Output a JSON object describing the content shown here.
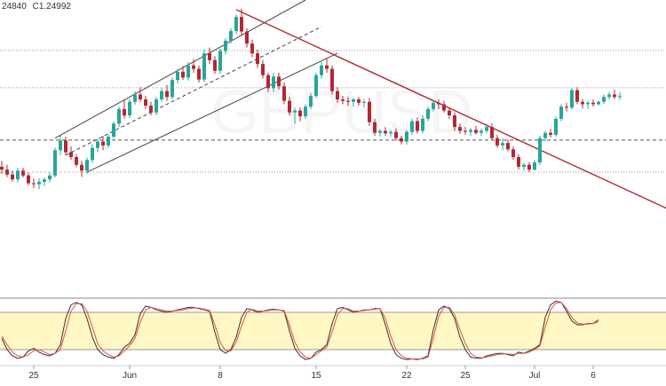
{
  "header": {
    "values": [
      "24840",
      "C1.24992"
    ]
  },
  "colors": {
    "up": "#26a69a",
    "down": "#b22833",
    "trendline": "#b22833",
    "channel": "#444444",
    "stoch_k": "#333333",
    "stoch_d": "#e05050",
    "stoch_band": "#fff8c4",
    "grid": "#9a9a9a"
  },
  "chart_data": [
    {
      "type": "candlestick",
      "instrument": "GBPUSD",
      "x_ticks": [
        "25",
        "Jun",
        "8",
        "15",
        "22",
        "25",
        "Jul",
        "6"
      ],
      "ylim": [
        1.2335,
        1.295
      ],
      "horizontal_levels": [
        1.2846,
        1.2769,
        1.2661,
        1.2595
      ],
      "rising_channel": {
        "lower": {
          "from": {
            "i": 16,
            "price": 1.2595
          },
          "to": {
            "i": 63,
            "price": 1.284
          }
        },
        "upper": {
          "from": {
            "i": 10,
            "price": 1.2665
          },
          "to": {
            "i": 57,
            "price": 1.295
          }
        },
        "mid_dashed": {
          "from": {
            "i": 12,
            "price": 1.263
          },
          "to": {
            "i": 60,
            "price": 1.2895
          }
        }
      },
      "falling_trendline": {
        "from": {
          "i": 44,
          "price": 1.293
        },
        "to": {
          "i": 112,
          "price": 1.2585
        }
      },
      "candles": [
        [
          1.2606,
          1.2618,
          1.2591,
          1.26
        ],
        [
          1.26,
          1.261,
          1.2585,
          1.259
        ],
        [
          1.259,
          1.2598,
          1.2575,
          1.258
        ],
        [
          1.258,
          1.2604,
          1.2574,
          1.2598
        ],
        [
          1.2598,
          1.2604,
          1.2584,
          1.2588
        ],
        [
          1.2588,
          1.2594,
          1.2568,
          1.2572
        ],
        [
          1.2572,
          1.2582,
          1.2562,
          1.257
        ],
        [
          1.257,
          1.2582,
          1.256,
          1.2575
        ],
        [
          1.2575,
          1.2584,
          1.2566,
          1.258
        ],
        [
          1.258,
          1.2594,
          1.2574,
          1.2588
        ],
        [
          1.2588,
          1.2645,
          1.2584,
          1.264
        ],
        [
          1.264,
          1.267,
          1.263,
          1.266
        ],
        [
          1.266,
          1.2668,
          1.263,
          1.2636
        ],
        [
          1.2636,
          1.2648,
          1.262,
          1.2626
        ],
        [
          1.2626,
          1.2632,
          1.2605,
          1.261
        ],
        [
          1.261,
          1.2618,
          1.2585,
          1.2598
        ],
        [
          1.2598,
          1.2625,
          1.2592,
          1.262
        ],
        [
          1.262,
          1.2652,
          1.2614,
          1.2645
        ],
        [
          1.2645,
          1.2664,
          1.2636,
          1.2658
        ],
        [
          1.2658,
          1.267,
          1.264,
          1.265
        ],
        [
          1.265,
          1.2672,
          1.2645,
          1.2668
        ],
        [
          1.2668,
          1.27,
          1.2664,
          1.2695
        ],
        [
          1.2695,
          1.273,
          1.2688,
          1.2725
        ],
        [
          1.2725,
          1.2745,
          1.2705,
          1.2712
        ],
        [
          1.2712,
          1.2745,
          1.2706,
          1.274
        ],
        [
          1.274,
          1.2762,
          1.2734,
          1.2755
        ],
        [
          1.2755,
          1.277,
          1.274,
          1.2745
        ],
        [
          1.2745,
          1.2752,
          1.2725,
          1.2732
        ],
        [
          1.2732,
          1.274,
          1.2712,
          1.2718
        ],
        [
          1.2718,
          1.275,
          1.2712,
          1.2745
        ],
        [
          1.2745,
          1.2768,
          1.274,
          1.2762
        ],
        [
          1.2762,
          1.2775,
          1.2742,
          1.275
        ],
        [
          1.275,
          1.279,
          1.2745,
          1.2785
        ],
        [
          1.2785,
          1.2808,
          1.2778,
          1.2802
        ],
        [
          1.2802,
          1.2814,
          1.2785,
          1.279
        ],
        [
          1.279,
          1.2822,
          1.2784,
          1.2815
        ],
        [
          1.2815,
          1.2828,
          1.28,
          1.2808
        ],
        [
          1.2808,
          1.2815,
          1.278,
          1.2786
        ],
        [
          1.2786,
          1.2848,
          1.278,
          1.284
        ],
        [
          1.284,
          1.2852,
          1.2818,
          1.2826
        ],
        [
          1.2826,
          1.2834,
          1.2798,
          1.2804
        ],
        [
          1.2804,
          1.285,
          1.2798,
          1.2845
        ],
        [
          1.2845,
          1.2872,
          1.2838,
          1.2866
        ],
        [
          1.2866,
          1.2892,
          1.286,
          1.2886
        ],
        [
          1.2886,
          1.292,
          1.288,
          1.2915
        ],
        [
          1.2915,
          1.2932,
          1.2876,
          1.2885
        ],
        [
          1.2885,
          1.2892,
          1.2852,
          1.286
        ],
        [
          1.286,
          1.2868,
          1.2832,
          1.284
        ],
        [
          1.284,
          1.2848,
          1.281,
          1.2818
        ],
        [
          1.2818,
          1.2826,
          1.2788,
          1.2795
        ],
        [
          1.2795,
          1.28,
          1.276,
          1.2768
        ],
        [
          1.2768,
          1.28,
          1.276,
          1.2792
        ],
        [
          1.2792,
          1.28,
          1.2765,
          1.2772
        ],
        [
          1.2772,
          1.278,
          1.2735,
          1.2742
        ],
        [
          1.2742,
          1.275,
          1.2712,
          1.2718
        ],
        [
          1.2718,
          1.2728,
          1.2695,
          1.2722
        ],
        [
          1.2722,
          1.2728,
          1.27,
          1.271
        ],
        [
          1.271,
          1.2735,
          1.2705,
          1.273
        ],
        [
          1.273,
          1.2758,
          1.2725,
          1.2752
        ],
        [
          1.2752,
          1.28,
          1.2748,
          1.2795
        ],
        [
          1.2795,
          1.2822,
          1.2788,
          1.2815
        ],
        [
          1.2815,
          1.283,
          1.28,
          1.2808
        ],
        [
          1.2808,
          1.2815,
          1.2755,
          1.2762
        ],
        [
          1.2762,
          1.277,
          1.2738,
          1.2745
        ],
        [
          1.2745,
          1.2752,
          1.2735,
          1.2742
        ],
        [
          1.2742,
          1.275,
          1.2732,
          1.274
        ],
        [
          1.274,
          1.2748,
          1.273,
          1.2745
        ],
        [
          1.2745,
          1.275,
          1.2732,
          1.2738
        ],
        [
          1.2738,
          1.2746,
          1.2728,
          1.274
        ],
        [
          1.274,
          1.2748,
          1.269,
          1.2698
        ],
        [
          1.2698,
          1.2705,
          1.267,
          1.2676
        ],
        [
          1.2676,
          1.2684,
          1.2668,
          1.268
        ],
        [
          1.268,
          1.2688,
          1.267,
          1.2675
        ],
        [
          1.2675,
          1.2682,
          1.2668,
          1.2678
        ],
        [
          1.2678,
          1.2685,
          1.266,
          1.2665
        ],
        [
          1.2665,
          1.267,
          1.2652,
          1.2658
        ],
        [
          1.2658,
          1.2682,
          1.2652,
          1.2678
        ],
        [
          1.2678,
          1.2705,
          1.2672,
          1.27
        ],
        [
          1.27,
          1.2708,
          1.2675,
          1.268
        ],
        [
          1.268,
          1.2712,
          1.2675,
          1.2705
        ],
        [
          1.2705,
          1.273,
          1.27,
          1.2725
        ],
        [
          1.2725,
          1.2742,
          1.272,
          1.2738
        ],
        [
          1.2738,
          1.2745,
          1.2725,
          1.2735
        ],
        [
          1.2735,
          1.2742,
          1.2718,
          1.2722
        ],
        [
          1.2722,
          1.2728,
          1.2705,
          1.2712
        ],
        [
          1.2712,
          1.2718,
          1.268,
          1.2688
        ],
        [
          1.2688,
          1.2695,
          1.2674,
          1.268
        ],
        [
          1.268,
          1.2688,
          1.2672,
          1.2678
        ],
        [
          1.2678,
          1.2686,
          1.267,
          1.2682
        ],
        [
          1.2682,
          1.269,
          1.2672,
          1.2676
        ],
        [
          1.2676,
          1.2685,
          1.267,
          1.268
        ],
        [
          1.268,
          1.2695,
          1.2675,
          1.2688
        ],
        [
          1.2688,
          1.2696,
          1.266,
          1.2665
        ],
        [
          1.2665,
          1.2672,
          1.2645,
          1.265
        ],
        [
          1.265,
          1.2665,
          1.264,
          1.2655
        ],
        [
          1.2655,
          1.2662,
          1.2638,
          1.2642
        ],
        [
          1.2642,
          1.2648,
          1.262,
          1.2626
        ],
        [
          1.2626,
          1.2632,
          1.26,
          1.2606
        ],
        [
          1.2606,
          1.2614,
          1.2598,
          1.261
        ],
        [
          1.261,
          1.2616,
          1.2595,
          1.26
        ],
        [
          1.26,
          1.262,
          1.2598,
          1.2615
        ],
        [
          1.2615,
          1.267,
          1.261,
          1.2665
        ],
        [
          1.2665,
          1.268,
          1.2658,
          1.2676
        ],
        [
          1.2676,
          1.2684,
          1.2666,
          1.2672
        ],
        [
          1.2672,
          1.271,
          1.2668,
          1.2705
        ],
        [
          1.2705,
          1.2735,
          1.27,
          1.273
        ],
        [
          1.273,
          1.2738,
          1.272,
          1.2728
        ],
        [
          1.2728,
          1.2768,
          1.2724,
          1.2764
        ],
        [
          1.2764,
          1.277,
          1.2735,
          1.274
        ],
        [
          1.274,
          1.2746,
          1.2726,
          1.2735
        ],
        [
          1.2735,
          1.2742,
          1.2725,
          1.2738
        ],
        [
          1.2738,
          1.2745,
          1.273,
          1.2735
        ],
        [
          1.2735,
          1.2742,
          1.2732,
          1.274
        ],
        [
          1.274,
          1.2755,
          1.2736,
          1.275
        ],
        [
          1.275,
          1.276,
          1.2745,
          1.2755
        ],
        [
          1.2755,
          1.2765,
          1.2746,
          1.275
        ],
        [
          1.275,
          1.276,
          1.2744,
          1.2752
        ]
      ]
    },
    {
      "type": "line",
      "indicator": "Stochastic",
      "ylim": [
        0,
        100
      ],
      "band": [
        20,
        80
      ],
      "series": [
        {
          "name": "",
          "color_key": "stoch_k",
          "values": [
            38,
            20,
            10,
            6,
            8,
            18,
            22,
            16,
            12,
            10,
            14,
            28,
            70,
            92,
            96,
            92,
            70,
            40,
            20,
            12,
            8,
            6,
            12,
            24,
            30,
            44,
            78,
            90,
            88,
            84,
            82,
            80,
            82,
            84,
            86,
            88,
            88,
            86,
            84,
            82,
            48,
            20,
            14,
            20,
            40,
            72,
            86,
            84,
            80,
            82,
            84,
            85,
            84,
            82,
            50,
            22,
            10,
            4,
            6,
            16,
            20,
            28,
            62,
            86,
            88,
            84,
            80,
            82,
            84,
            84,
            86,
            86,
            60,
            30,
            12,
            6,
            4,
            5,
            4,
            6,
            10,
            52,
            84,
            90,
            86,
            70,
            40,
            20,
            8,
            6,
            6,
            10,
            12,
            14,
            14,
            12,
            10,
            16,
            14,
            18,
            22,
            28,
            72,
            92,
            98,
            96,
            82,
            66,
            60,
            60,
            62,
            62,
            68
          ]
        },
        {
          "name": "",
          "color_key": "stoch_d",
          "values": [
            42,
            28,
            16,
            10,
            8,
            12,
            18,
            20,
            16,
            12,
            14,
            20,
            50,
            82,
            94,
            94,
            82,
            56,
            30,
            18,
            12,
            8,
            10,
            18,
            26,
            38,
            64,
            84,
            88,
            86,
            84,
            82,
            82,
            83,
            84,
            86,
            87,
            87,
            85,
            83,
            60,
            32,
            18,
            18,
            32,
            58,
            80,
            85,
            82,
            82,
            83,
            84,
            84,
            83,
            60,
            32,
            16,
            8,
            6,
            12,
            18,
            24,
            48,
            76,
            86,
            86,
            82,
            82,
            83,
            84,
            85,
            86,
            70,
            42,
            20,
            10,
            6,
            5,
            5,
            5,
            8,
            38,
            74,
            88,
            88,
            76,
            52,
            30,
            14,
            8,
            7,
            8,
            10,
            12,
            13,
            13,
            12,
            14,
            14,
            16,
            20,
            26,
            56,
            84,
            95,
            96,
            86,
            72,
            63,
            61,
            61,
            62,
            65
          ]
        }
      ]
    }
  ]
}
